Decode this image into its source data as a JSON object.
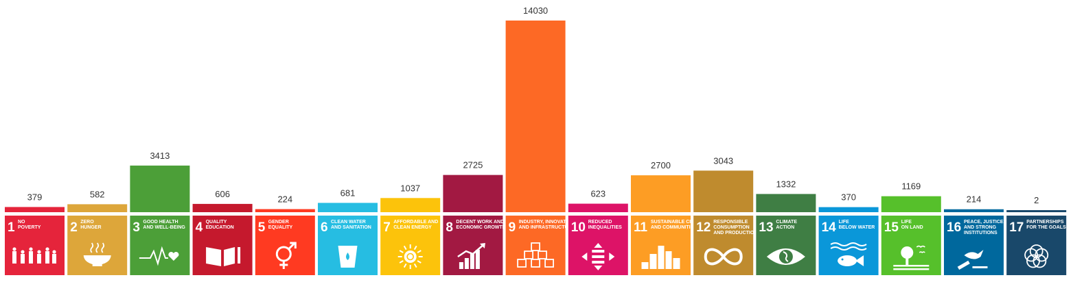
{
  "chart_data": {
    "type": "bar",
    "title": "",
    "xlabel": "",
    "ylabel": "",
    "ylim": [
      0,
      14030
    ],
    "categories": [
      {
        "num": "1",
        "lines": [
          "NO",
          "POVERTY"
        ],
        "color": "#E5243B",
        "icon": "people-icon"
      },
      {
        "num": "2",
        "lines": [
          "ZERO",
          "HUNGER"
        ],
        "color": "#DDA63A",
        "icon": "bowl-icon"
      },
      {
        "num": "3",
        "lines": [
          "GOOD HEALTH",
          "AND WELL-BEING"
        ],
        "color": "#4C9F38",
        "icon": "heartbeat-icon"
      },
      {
        "num": "4",
        "lines": [
          "QUALITY",
          "EDUCATION"
        ],
        "color": "#C5192D",
        "icon": "book-icon"
      },
      {
        "num": "5",
        "lines": [
          "GENDER",
          "EQUALITY"
        ],
        "color": "#FF3A21",
        "icon": "gender-icon"
      },
      {
        "num": "6",
        "lines": [
          "CLEAN WATER",
          "AND SANITATION"
        ],
        "color": "#26BDE2",
        "icon": "water-glass-icon"
      },
      {
        "num": "7",
        "lines": [
          "AFFORDABLE AND",
          "CLEAN ENERGY"
        ],
        "color": "#FCC30B",
        "icon": "sun-power-icon"
      },
      {
        "num": "8",
        "lines": [
          "DECENT WORK AND",
          "ECONOMIC GROWTH"
        ],
        "color": "#A21942",
        "icon": "growth-chart-icon"
      },
      {
        "num": "9",
        "lines": [
          "INDUSTRY, INNOVATION",
          "AND INFRASTRUCTURE"
        ],
        "color": "#FD6925",
        "icon": "cubes-icon"
      },
      {
        "num": "10",
        "lines": [
          "REDUCED",
          "INEQUALITIES"
        ],
        "color": "#DD1367",
        "icon": "equality-arrows-icon"
      },
      {
        "num": "11",
        "lines": [
          "SUSTAINABLE CITIES",
          "AND COMMUNITIES"
        ],
        "color": "#FD9D24",
        "icon": "city-icon"
      },
      {
        "num": "12",
        "lines": [
          "RESPONSIBLE",
          "CONSUMPTION",
          "AND PRODUCTION"
        ],
        "color": "#BF8B2E",
        "icon": "infinity-icon"
      },
      {
        "num": "13",
        "lines": [
          "CLIMATE",
          "ACTION"
        ],
        "color": "#3F7E44",
        "icon": "eye-globe-icon"
      },
      {
        "num": "14",
        "lines": [
          "LIFE",
          "BELOW WATER"
        ],
        "color": "#0A97D9",
        "icon": "fish-icon"
      },
      {
        "num": "15",
        "lines": [
          "LIFE",
          "ON LAND"
        ],
        "color": "#56C02B",
        "icon": "tree-birds-icon"
      },
      {
        "num": "16",
        "lines": [
          "PEACE, JUSTICE",
          "AND STRONG",
          "INSTITUTIONS"
        ],
        "color": "#00689D",
        "icon": "dove-gavel-icon"
      },
      {
        "num": "17",
        "lines": [
          "PARTNERSHIPS",
          "FOR THE GOALS"
        ],
        "color": "#19486A",
        "icon": "rings-icon"
      }
    ],
    "values": [
      379,
      582,
      3413,
      606,
      224,
      681,
      1037,
      2725,
      14030,
      623,
      2700,
      3043,
      1332,
      370,
      1169,
      214,
      2
    ]
  }
}
